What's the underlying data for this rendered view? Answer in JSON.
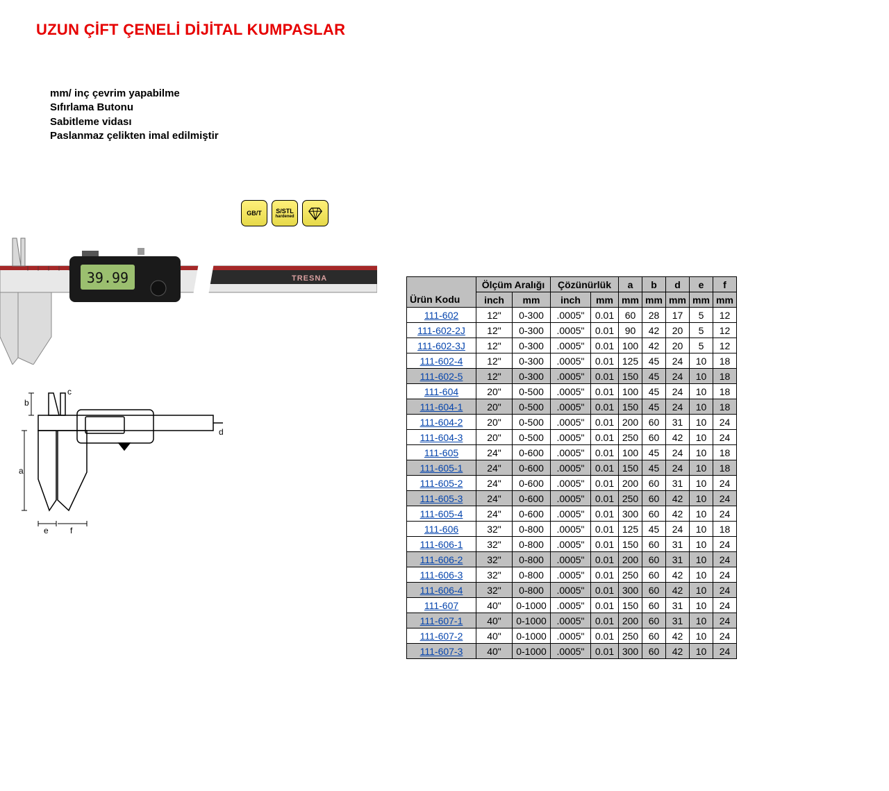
{
  "title": "UZUN ÇİFT ÇENELİ DİJİTAL KUMPASLAR",
  "features": [
    "mm/ inç çevrim yapabilme",
    "Sıfırlama Butonu",
    "Sabitleme vidası",
    "Paslanmaz çelikten imal edilmiştir"
  ],
  "badges": {
    "gbt": "GB/T",
    "sstl": "S/STL",
    "sstl_sub": "hardened"
  },
  "diagram_labels": {
    "a": "a",
    "b": "b",
    "c": "c",
    "d": "d",
    "e": "e",
    "f": "f"
  },
  "photo": {
    "display_value": "39.99",
    "brand": "TRESNA"
  },
  "table": {
    "header": {
      "code": "Ürün Kodu",
      "range": "Ölçüm Aralığı",
      "res": "Çözünürlük",
      "a": "a",
      "b": "b",
      "d": "d",
      "e": "e",
      "f": "f",
      "inch": "inch",
      "mm": "mm"
    },
    "shaded_rows": [
      4,
      6,
      10,
      12,
      16,
      18,
      20,
      22
    ],
    "rows": [
      {
        "code": "111-602",
        "inch": "12\"",
        "mm": "0-300",
        "ri": ".0005\"",
        "rm": "0.01",
        "a": "60",
        "b": "28",
        "d": "17",
        "e": "5",
        "f": "12"
      },
      {
        "code": "111-602-2J",
        "inch": "12\"",
        "mm": "0-300",
        "ri": ".0005\"",
        "rm": "0.01",
        "a": "90",
        "b": "42",
        "d": "20",
        "e": "5",
        "f": "12"
      },
      {
        "code": "111-602-3J",
        "inch": "12\"",
        "mm": "0-300",
        "ri": ".0005\"",
        "rm": "0.01",
        "a": "100",
        "b": "42",
        "d": "20",
        "e": "5",
        "f": "12"
      },
      {
        "code": "111-602-4",
        "inch": "12\"",
        "mm": "0-300",
        "ri": ".0005\"",
        "rm": "0.01",
        "a": "125",
        "b": "45",
        "d": "24",
        "e": "10",
        "f": "18"
      },
      {
        "code": "111-602-5",
        "inch": "12\"",
        "mm": "0-300",
        "ri": ".0005\"",
        "rm": "0.01",
        "a": "150",
        "b": "45",
        "d": "24",
        "e": "10",
        "f": "18"
      },
      {
        "code": "111-604",
        "inch": "20\"",
        "mm": "0-500",
        "ri": ".0005\"",
        "rm": "0.01",
        "a": "100",
        "b": "45",
        "d": "24",
        "e": "10",
        "f": "18"
      },
      {
        "code": "111-604-1",
        "inch": "20\"",
        "mm": "0-500",
        "ri": ".0005\"",
        "rm": "0.01",
        "a": "150",
        "b": "45",
        "d": "24",
        "e": "10",
        "f": "18"
      },
      {
        "code": "111-604-2",
        "inch": "20\"",
        "mm": "0-500",
        "ri": ".0005\"",
        "rm": "0.01",
        "a": "200",
        "b": "60",
        "d": "31",
        "e": "10",
        "f": "24"
      },
      {
        "code": "111-604-3",
        "inch": "20\"",
        "mm": "0-500",
        "ri": ".0005\"",
        "rm": "0.01",
        "a": "250",
        "b": "60",
        "d": "42",
        "e": "10",
        "f": "24"
      },
      {
        "code": "111-605",
        "inch": "24\"",
        "mm": "0-600",
        "ri": ".0005\"",
        "rm": "0.01",
        "a": "100",
        "b": "45",
        "d": "24",
        "e": "10",
        "f": "18"
      },
      {
        "code": "111-605-1",
        "inch": "24\"",
        "mm": "0-600",
        "ri": ".0005\"",
        "rm": "0.01",
        "a": "150",
        "b": "45",
        "d": "24",
        "e": "10",
        "f": "18"
      },
      {
        "code": "111-605-2",
        "inch": "24\"",
        "mm": "0-600",
        "ri": ".0005\"",
        "rm": "0.01",
        "a": "200",
        "b": "60",
        "d": "31",
        "e": "10",
        "f": "24"
      },
      {
        "code": "111-605-3",
        "inch": "24\"",
        "mm": "0-600",
        "ri": ".0005\"",
        "rm": "0.01",
        "a": "250",
        "b": "60",
        "d": "42",
        "e": "10",
        "f": "24"
      },
      {
        "code": "111-605-4",
        "inch": "24\"",
        "mm": "0-600",
        "ri": ".0005\"",
        "rm": "0.01",
        "a": "300",
        "b": "60",
        "d": "42",
        "e": "10",
        "f": "24"
      },
      {
        "code": "111-606",
        "inch": "32\"",
        "mm": "0-800",
        "ri": ".0005\"",
        "rm": "0.01",
        "a": "125",
        "b": "45",
        "d": "24",
        "e": "10",
        "f": "18"
      },
      {
        "code": "111-606-1",
        "inch": "32\"",
        "mm": "0-800",
        "ri": ".0005\"",
        "rm": "0.01",
        "a": "150",
        "b": "60",
        "d": "31",
        "e": "10",
        "f": "24"
      },
      {
        "code": "111-606-2",
        "inch": "32\"",
        "mm": "0-800",
        "ri": ".0005\"",
        "rm": "0.01",
        "a": "200",
        "b": "60",
        "d": "31",
        "e": "10",
        "f": "24"
      },
      {
        "code": "111-606-3",
        "inch": "32\"",
        "mm": "0-800",
        "ri": ".0005\"",
        "rm": "0.01",
        "a": "250",
        "b": "60",
        "d": "42",
        "e": "10",
        "f": "24"
      },
      {
        "code": "111-606-4",
        "inch": "32\"",
        "mm": "0-800",
        "ri": ".0005\"",
        "rm": "0.01",
        "a": "300",
        "b": "60",
        "d": "42",
        "e": "10",
        "f": "24"
      },
      {
        "code": "111-607",
        "inch": "40\"",
        "mm": "0-1000",
        "ri": ".0005\"",
        "rm": "0.01",
        "a": "150",
        "b": "60",
        "d": "31",
        "e": "10",
        "f": "24"
      },
      {
        "code": "111-607-1",
        "inch": "40\"",
        "mm": "0-1000",
        "ri": ".0005\"",
        "rm": "0.01",
        "a": "200",
        "b": "60",
        "d": "31",
        "e": "10",
        "f": "24"
      },
      {
        "code": "111-607-2",
        "inch": "40\"",
        "mm": "0-1000",
        "ri": ".0005\"",
        "rm": "0.01",
        "a": "250",
        "b": "60",
        "d": "42",
        "e": "10",
        "f": "24"
      },
      {
        "code": "111-607-3",
        "inch": "40\"",
        "mm": "0-1000",
        "ri": ".0005\"",
        "rm": "0.01",
        "a": "300",
        "b": "60",
        "d": "42",
        "e": "10",
        "f": "24"
      }
    ]
  }
}
